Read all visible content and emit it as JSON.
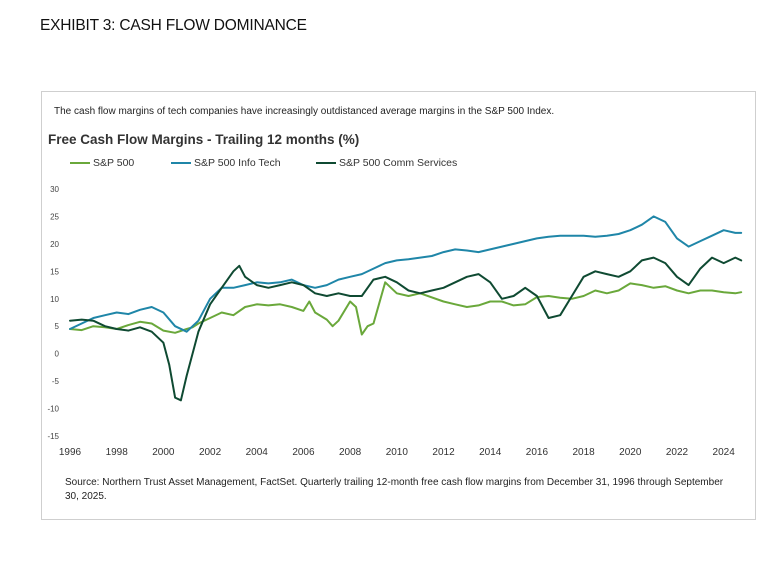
{
  "page": {
    "exhibit_title": "EXHIBIT 3: CASH FLOW DOMINANCE",
    "intro": "The cash flow margins of tech companies have increasingly outdistanced average margins in the S&P 500 Index.",
    "source": "Source: Northern Trust Asset Management, FactSet. Quarterly trailing 12-month free cash flow margins from December 31, 1996 through September 30, 2025."
  },
  "chart_data": {
    "type": "line",
    "title": "Free Cash Flow Margins - Trailing 12 months (%)",
    "xlabel": "",
    "ylabel": "",
    "xlim": [
      1996,
      2025
    ],
    "ylim": [
      -15,
      30
    ],
    "yticks": [
      30,
      25,
      20,
      15,
      10,
      5,
      0,
      -5,
      -10,
      -15
    ],
    "xticks": [
      1996,
      1998,
      2000,
      2002,
      2004,
      2006,
      2008,
      2010,
      2012,
      2014,
      2016,
      2018,
      2020,
      2022,
      2024
    ],
    "grid": false,
    "legend_position": "top-left",
    "series": [
      {
        "name": "S&P 500",
        "color": "#6aa83b",
        "x": [
          1996.0,
          1996.5,
          1997.0,
          1997.5,
          1998.0,
          1998.5,
          1999.0,
          1999.5,
          2000.0,
          2000.5,
          2001.0,
          2001.25,
          2001.5,
          2002.0,
          2002.5,
          2003.0,
          2003.5,
          2004.0,
          2004.5,
          2005.0,
          2005.5,
          2006.0,
          2006.25,
          2006.5,
          2007.0,
          2007.25,
          2007.5,
          2008.0,
          2008.25,
          2008.5,
          2008.75,
          2009.0,
          2009.5,
          2010.0,
          2010.5,
          2011.0,
          2012.0,
          2012.5,
          2013.0,
          2013.5,
          2014.0,
          2014.5,
          2015.0,
          2015.5,
          2016.0,
          2016.5,
          2017.0,
          2017.5,
          2018.0,
          2018.5,
          2019.0,
          2019.5,
          2020.0,
          2020.5,
          2021.0,
          2021.5,
          2022.0,
          2022.5,
          2023.0,
          2023.5,
          2024.0,
          2024.5,
          2024.75
        ],
        "y": [
          4.5,
          4.3,
          5.0,
          4.8,
          4.5,
          5.2,
          5.8,
          5.5,
          4.2,
          3.8,
          4.5,
          4.8,
          5.5,
          6.5,
          7.5,
          7.0,
          8.5,
          9.0,
          8.8,
          9.0,
          8.5,
          7.8,
          9.5,
          7.5,
          6.2,
          5.0,
          6.0,
          9.5,
          8.5,
          3.5,
          5.0,
          5.5,
          13.0,
          11.0,
          10.5,
          11.0,
          9.5,
          9.0,
          8.5,
          8.8,
          9.5,
          9.5,
          8.8,
          9.0,
          10.3,
          10.5,
          10.2,
          10.0,
          10.5,
          11.5,
          11.0,
          11.5,
          12.8,
          12.5,
          12.0,
          12.3,
          11.5,
          11.0,
          11.5,
          11.5,
          11.2,
          11.0,
          11.2
        ]
      },
      {
        "name": "S&P 500 Info Tech",
        "color": "#1f86a8",
        "x": [
          1996.0,
          1996.5,
          1997.0,
          1997.5,
          1998.0,
          1998.5,
          1999.0,
          1999.5,
          2000.0,
          2000.5,
          2001.0,
          2001.5,
          2002.0,
          2002.5,
          2003.0,
          2003.5,
          2004.0,
          2004.5,
          2005.0,
          2005.5,
          2006.0,
          2006.5,
          2007.0,
          2007.5,
          2008.0,
          2008.5,
          2009.0,
          2009.5,
          2010.0,
          2010.5,
          2011.0,
          2011.5,
          2012.0,
          2012.5,
          2013.0,
          2013.5,
          2014.0,
          2014.5,
          2015.0,
          2015.5,
          2016.0,
          2016.5,
          2017.0,
          2017.5,
          2018.0,
          2018.5,
          2019.0,
          2019.5,
          2020.0,
          2020.5,
          2021.0,
          2021.5,
          2022.0,
          2022.5,
          2023.0,
          2023.5,
          2024.0,
          2024.5,
          2024.75
        ],
        "y": [
          4.5,
          5.5,
          6.5,
          7.0,
          7.5,
          7.2,
          8.0,
          8.5,
          7.5,
          5.0,
          4.0,
          6.0,
          10.0,
          12.0,
          12.0,
          12.5,
          13.0,
          12.8,
          13.0,
          13.5,
          12.5,
          12.0,
          12.5,
          13.5,
          14.0,
          14.5,
          15.5,
          16.5,
          17.0,
          17.2,
          17.5,
          17.8,
          18.5,
          19.0,
          18.8,
          18.5,
          19.0,
          19.5,
          20.0,
          20.5,
          21.0,
          21.3,
          21.5,
          21.5,
          21.5,
          21.3,
          21.5,
          21.8,
          22.5,
          23.5,
          25.0,
          24.0,
          21.0,
          19.5,
          20.5,
          21.5,
          22.5,
          22.0,
          22.0
        ]
      },
      {
        "name": "S&P 500 Comm Services",
        "color": "#0f4a32",
        "x": [
          1996.0,
          1996.5,
          1997.0,
          1997.5,
          1998.0,
          1998.5,
          1999.0,
          1999.5,
          2000.0,
          2000.25,
          2000.5,
          2000.75,
          2001.0,
          2001.5,
          2002.0,
          2002.5,
          2003.0,
          2003.25,
          2003.5,
          2004.0,
          2004.5,
          2005.0,
          2005.5,
          2006.0,
          2006.5,
          2007.0,
          2007.5,
          2008.0,
          2008.5,
          2009.0,
          2009.5,
          2010.0,
          2010.5,
          2011.0,
          2011.5,
          2012.0,
          2012.5,
          2013.0,
          2013.5,
          2014.0,
          2014.5,
          2015.0,
          2015.5,
          2016.0,
          2016.5,
          2017.0,
          2017.5,
          2018.0,
          2018.5,
          2019.0,
          2019.5,
          2020.0,
          2020.5,
          2021.0,
          2021.5,
          2022.0,
          2022.5,
          2023.0,
          2023.5,
          2024.0,
          2024.5,
          2024.75
        ],
        "y": [
          6.0,
          6.2,
          6.0,
          5.0,
          4.5,
          4.2,
          4.8,
          4.0,
          2.0,
          -2.0,
          -8.0,
          -8.5,
          -4.0,
          4.0,
          9.0,
          12.0,
          15.0,
          16.0,
          14.0,
          12.5,
          12.0,
          12.5,
          13.0,
          12.5,
          11.0,
          10.5,
          11.0,
          10.5,
          10.5,
          13.5,
          14.0,
          13.0,
          11.5,
          11.0,
          11.5,
          12.0,
          13.0,
          14.0,
          14.5,
          13.0,
          10.0,
          10.5,
          12.0,
          10.5,
          6.5,
          7.0,
          10.5,
          14.0,
          15.0,
          14.5,
          14.0,
          15.0,
          17.0,
          17.5,
          16.5,
          14.0,
          12.5,
          15.5,
          17.5,
          16.5,
          17.5,
          17.0
        ]
      }
    ]
  }
}
